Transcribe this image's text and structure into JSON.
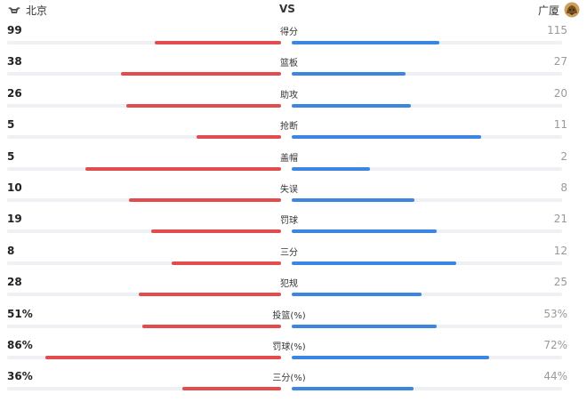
{
  "header": {
    "home_team": "北京",
    "away_team": "广厦",
    "vs_label": "VS",
    "home_logo": "bull-logo",
    "away_logo": "lion-logo",
    "home_color": "#e24c4c",
    "away_color": "#3b86e0"
  },
  "stats": [
    {
      "label": "得分",
      "home": "99",
      "away": "115",
      "home_bar": 0.46,
      "away_bar": 0.545
    },
    {
      "label": "篮板",
      "home": "38",
      "away": "27",
      "home_bar": 0.585,
      "away_bar": 0.42
    },
    {
      "label": "助攻",
      "home": "26",
      "away": "20",
      "home_bar": 0.565,
      "away_bar": 0.44
    },
    {
      "label": "抢断",
      "home": "5",
      "away": "11",
      "home_bar": 0.31,
      "away_bar": 0.7
    },
    {
      "label": "盖帽",
      "home": "5",
      "away": "2",
      "home_bar": 0.715,
      "away_bar": 0.29
    },
    {
      "label": "失误",
      "home": "10",
      "away": "8",
      "home_bar": 0.555,
      "away_bar": 0.455
    },
    {
      "label": "罚球",
      "home": "19",
      "away": "21",
      "home_bar": 0.475,
      "away_bar": 0.535
    },
    {
      "label": "三分",
      "home": "8",
      "away": "12",
      "home_bar": 0.4,
      "away_bar": 0.61
    },
    {
      "label": "犯规",
      "home": "28",
      "away": "25",
      "home_bar": 0.52,
      "away_bar": 0.48
    },
    {
      "label": "投篮(%)",
      "home": "51%",
      "away": "53%",
      "home_bar": 0.505,
      "away_bar": 0.535
    },
    {
      "label": "罚球(%)",
      "home": "86%",
      "away": "72%",
      "home_bar": 0.86,
      "away_bar": 0.73
    },
    {
      "label": "三分(%)",
      "home": "36%",
      "away": "44%",
      "home_bar": 0.36,
      "away_bar": 0.45
    }
  ]
}
